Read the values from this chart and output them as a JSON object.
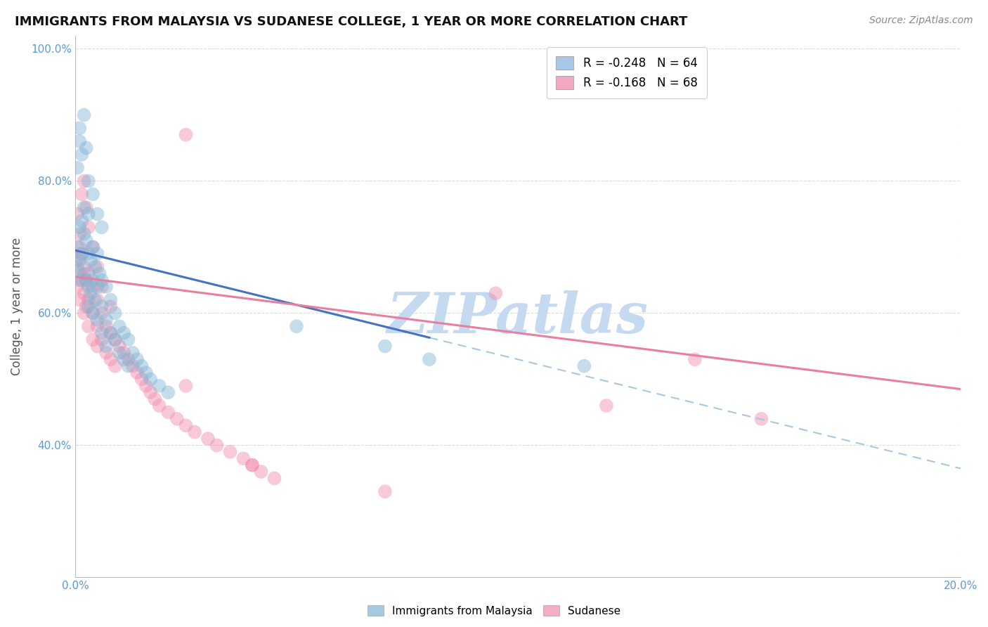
{
  "title": "IMMIGRANTS FROM MALAYSIA VS SUDANESE COLLEGE, 1 YEAR OR MORE CORRELATION CHART",
  "source": "Source: ZipAtlas.com",
  "ylabel": "College, 1 year or more",
  "xlim": [
    0.0,
    0.2
  ],
  "ylim": [
    0.2,
    1.02
  ],
  "xticks": [
    0.0,
    0.02,
    0.04,
    0.06,
    0.08,
    0.1,
    0.12,
    0.14,
    0.16,
    0.18,
    0.2
  ],
  "xticklabels": [
    "0.0%",
    "",
    "",
    "",
    "",
    "",
    "",
    "",
    "",
    "",
    "20.0%"
  ],
  "yticks": [
    0.2,
    0.4,
    0.6,
    0.8,
    1.0
  ],
  "yticklabels": [
    "",
    "40.0%",
    "60.0%",
    "80.0%",
    "100.0%"
  ],
  "legend_entries": [
    {
      "label": "R = -0.248   N = 64",
      "color": "#a8c8e8"
    },
    {
      "label": "R = -0.168   N = 68",
      "color": "#f4a8c0"
    }
  ],
  "watermark": "ZIPatlas",
  "watermark_color": "#c5d9f0",
  "malaysia_color": "#7fb3d3",
  "sudanese_color": "#f08aaa",
  "malaysia_line_color": "#4472c4",
  "sudanese_line_color": "#e87fa0",
  "dashed_line_color": "#a8c8e0",
  "grid_color": "#d5dde5",
  "malaysia_slope": -1.65,
  "malaysia_intercept": 0.695,
  "malaysia_line_xstart": 0.0,
  "malaysia_line_xend": 0.08,
  "malaysia_dash_xstart": 0.08,
  "malaysia_dash_xend": 0.205,
  "sudanese_slope": -0.85,
  "sudanese_intercept": 0.655,
  "sudanese_line_xstart": 0.0,
  "sudanese_line_xend": 0.205,
  "malaysia_scatter_x": [
    0.0005,
    0.0005,
    0.001,
    0.001,
    0.001,
    0.0015,
    0.0015,
    0.002,
    0.002,
    0.002,
    0.0025,
    0.0025,
    0.003,
    0.003,
    0.003,
    0.003,
    0.0035,
    0.0035,
    0.004,
    0.004,
    0.004,
    0.0045,
    0.0045,
    0.005,
    0.005,
    0.005,
    0.0055,
    0.006,
    0.006,
    0.006,
    0.007,
    0.007,
    0.007,
    0.008,
    0.008,
    0.009,
    0.009,
    0.01,
    0.01,
    0.011,
    0.011,
    0.012,
    0.012,
    0.013,
    0.014,
    0.015,
    0.016,
    0.017,
    0.019,
    0.021,
    0.0005,
    0.001,
    0.001,
    0.0015,
    0.002,
    0.0025,
    0.003,
    0.004,
    0.005,
    0.006,
    0.05,
    0.07,
    0.08,
    0.115
  ],
  "malaysia_scatter_y": [
    0.7,
    0.67,
    0.73,
    0.68,
    0.65,
    0.74,
    0.69,
    0.76,
    0.72,
    0.66,
    0.71,
    0.65,
    0.75,
    0.69,
    0.64,
    0.61,
    0.68,
    0.63,
    0.7,
    0.65,
    0.6,
    0.67,
    0.62,
    0.69,
    0.64,
    0.59,
    0.66,
    0.65,
    0.61,
    0.57,
    0.64,
    0.59,
    0.55,
    0.62,
    0.57,
    0.6,
    0.56,
    0.58,
    0.54,
    0.57,
    0.53,
    0.56,
    0.52,
    0.54,
    0.53,
    0.52,
    0.51,
    0.5,
    0.49,
    0.48,
    0.82,
    0.86,
    0.88,
    0.84,
    0.9,
    0.85,
    0.8,
    0.78,
    0.75,
    0.73,
    0.58,
    0.55,
    0.53,
    0.52
  ],
  "sudanese_scatter_x": [
    0.0005,
    0.0005,
    0.001,
    0.001,
    0.001,
    0.0015,
    0.0015,
    0.002,
    0.002,
    0.002,
    0.0025,
    0.0025,
    0.003,
    0.003,
    0.003,
    0.004,
    0.004,
    0.004,
    0.005,
    0.005,
    0.005,
    0.006,
    0.006,
    0.007,
    0.007,
    0.008,
    0.008,
    0.009,
    0.009,
    0.01,
    0.011,
    0.012,
    0.013,
    0.014,
    0.015,
    0.016,
    0.017,
    0.018,
    0.019,
    0.021,
    0.023,
    0.025,
    0.027,
    0.03,
    0.032,
    0.035,
    0.038,
    0.04,
    0.042,
    0.045,
    0.0005,
    0.001,
    0.0015,
    0.002,
    0.0025,
    0.003,
    0.004,
    0.005,
    0.006,
    0.008,
    0.025,
    0.04,
    0.07,
    0.155,
    0.14,
    0.025,
    0.095,
    0.12
  ],
  "sudanese_scatter_y": [
    0.68,
    0.64,
    0.7,
    0.66,
    0.62,
    0.69,
    0.65,
    0.67,
    0.63,
    0.6,
    0.65,
    0.61,
    0.66,
    0.62,
    0.58,
    0.64,
    0.6,
    0.56,
    0.62,
    0.58,
    0.55,
    0.6,
    0.56,
    0.58,
    0.54,
    0.57,
    0.53,
    0.56,
    0.52,
    0.55,
    0.54,
    0.53,
    0.52,
    0.51,
    0.5,
    0.49,
    0.48,
    0.47,
    0.46,
    0.45,
    0.44,
    0.43,
    0.42,
    0.41,
    0.4,
    0.39,
    0.38,
    0.37,
    0.36,
    0.35,
    0.75,
    0.72,
    0.78,
    0.8,
    0.76,
    0.73,
    0.7,
    0.67,
    0.64,
    0.61,
    0.49,
    0.37,
    0.33,
    0.44,
    0.53,
    0.87,
    0.63,
    0.46
  ]
}
